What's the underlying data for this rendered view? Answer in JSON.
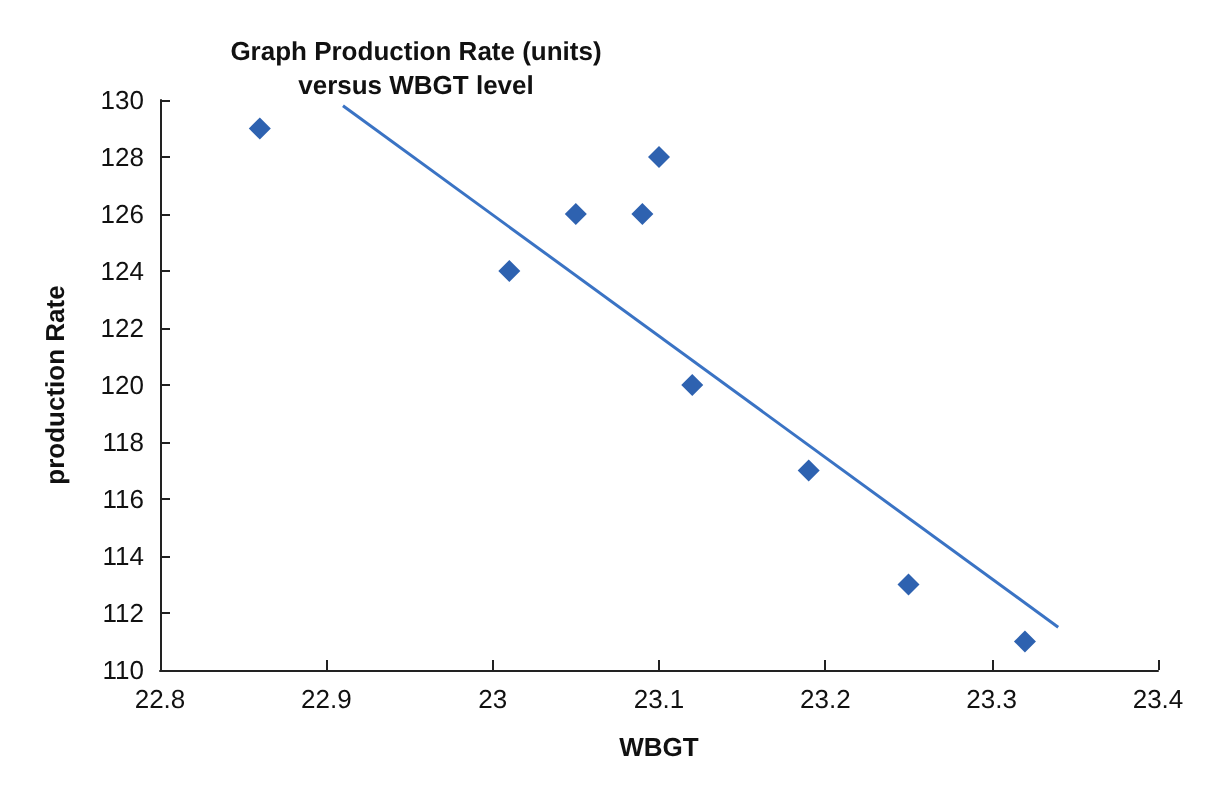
{
  "chart_data": {
    "type": "scatter",
    "title": "Graph Production Rate (units)\nversus WBGT level",
    "xlabel": "WBGT",
    "ylabel": "production Rate",
    "series": [
      {
        "marker": "diamond",
        "color": "#2e62b0",
        "x": [
          22.86,
          23.01,
          23.05,
          23.09,
          23.1,
          23.12,
          23.19,
          23.25,
          23.32
        ],
        "values": [
          129,
          124,
          126,
          126,
          128,
          120,
          117,
          113,
          111
        ]
      },
      {
        "type": "line",
        "marker": "none",
        "color": "#3a73c4",
        "x": [
          22.91,
          23.34
        ],
        "values": [
          129.8,
          111.5
        ]
      }
    ],
    "xlim": [
      22.8,
      23.4
    ],
    "xticks": [
      22.8,
      22.9,
      23,
      23.1,
      23.2,
      23.3,
      23.4
    ],
    "ylim": [
      110,
      130
    ],
    "yticks": [
      110,
      112,
      114,
      116,
      118,
      120,
      122,
      124,
      126,
      128,
      130
    ],
    "grid": false
  }
}
